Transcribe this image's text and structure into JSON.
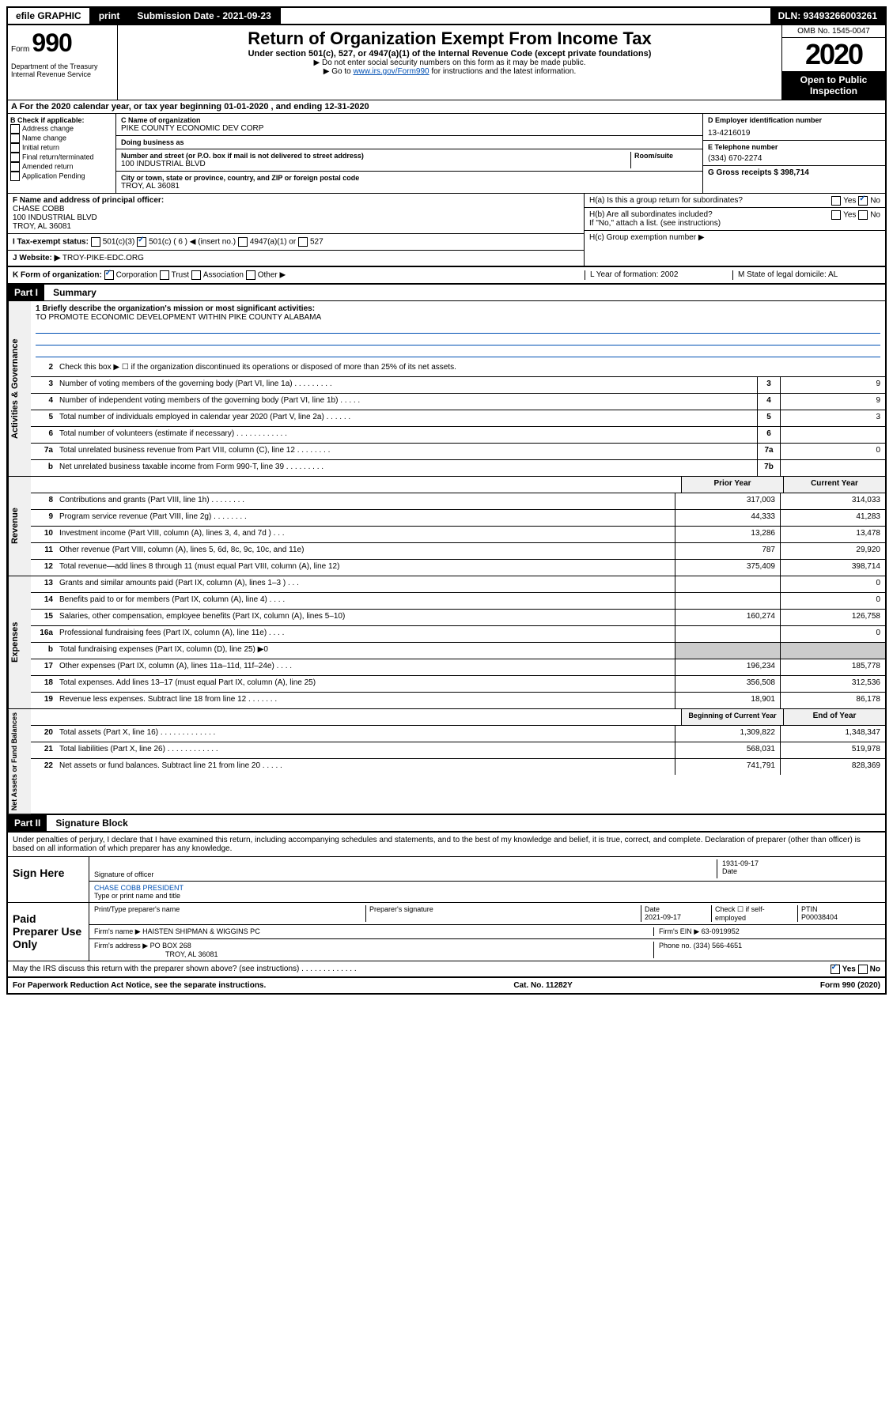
{
  "topbar": {
    "efile": "efile GRAPHIC",
    "print": "print",
    "subdate_label": "Submission Date - 2021-09-23",
    "dln": "DLN: 93493266003261"
  },
  "header": {
    "form_label": "Form",
    "form_num": "990",
    "dept": "Department of the Treasury\nInternal Revenue Service",
    "title": "Return of Organization Exempt From Income Tax",
    "subtitle": "Under section 501(c), 527, or 4947(a)(1) of the Internal Revenue Code (except private foundations)",
    "instr1": "▶ Do not enter social security numbers on this form as it may be made public.",
    "instr2_pre": "▶ Go to ",
    "instr2_link": "www.irs.gov/Form990",
    "instr2_post": " for instructions and the latest information.",
    "omb": "OMB No. 1545-0047",
    "year": "2020",
    "open": "Open to Public Inspection"
  },
  "row_a": "A For the 2020 calendar year, or tax year beginning 01-01-2020    , and ending 12-31-2020",
  "col_b": {
    "label": "B Check if applicable:",
    "items": [
      "Address change",
      "Name change",
      "Initial return",
      "Final return/terminated",
      "Amended return",
      "Application Pending"
    ]
  },
  "org": {
    "name_label": "C Name of organization",
    "name": "PIKE COUNTY ECONOMIC DEV CORP",
    "dba_label": "Doing business as",
    "addr_label": "Number and street (or P.O. box if mail is not delivered to street address)",
    "room_label": "Room/suite",
    "addr": "100 INDUSTRIAL BLVD",
    "city_label": "City or town, state or province, country, and ZIP or foreign postal code",
    "city": "TROY, AL  36081"
  },
  "right": {
    "d_label": "D Employer identification number",
    "d_val": "13-4216019",
    "e_label": "E Telephone number",
    "e_val": "(334) 670-2274",
    "g_label": "G Gross receipts $ 398,714"
  },
  "officer": {
    "label": "F  Name and address of principal officer:",
    "name": "CHASE COBB",
    "addr1": "100 INDUSTRIAL BLVD",
    "addr2": "TROY, AL  36081"
  },
  "h": {
    "a": "H(a)  Is this a group return for subordinates?",
    "b": "H(b)  Are all subordinates included?",
    "b_note": "If \"No,\" attach a list. (see instructions)",
    "c": "H(c)  Group exemption number ▶",
    "yes": "Yes",
    "no": "No"
  },
  "tax_status": {
    "label": "I  Tax-exempt status:",
    "opts": [
      "501(c)(3)",
      "501(c) ( 6 ) ◀ (insert no.)",
      "4947(a)(1) or",
      "527"
    ]
  },
  "website": {
    "label": "J  Website: ▶",
    "val": "TROY-PIKE-EDC.ORG"
  },
  "korg": {
    "label": "K Form of organization:",
    "opts": [
      "Corporation",
      "Trust",
      "Association",
      "Other ▶"
    ],
    "l": "L Year of formation: 2002",
    "m": "M State of legal domicile: AL"
  },
  "part1": {
    "header": "Part I",
    "title": "Summary"
  },
  "governance": {
    "tab": "Activities & Governance",
    "q1_label": "1  Briefly describe the organization's mission or most significant activities:",
    "q1_val": "TO PROMOTE ECONOMIC DEVELOPMENT WITHIN PIKE COUNTY ALABAMA",
    "lines": [
      {
        "n": "2",
        "t": "Check this box ▶ ☐  if the organization discontinued its operations or disposed of more than 25% of its net assets."
      },
      {
        "n": "3",
        "t": "Number of voting members of the governing body (Part VI, line 1a)  .    .    .    .    .    .    .    .    .",
        "box": "3",
        "v": "9"
      },
      {
        "n": "4",
        "t": "Number of independent voting members of the governing body (Part VI, line 1b)  .    .    .    .    .",
        "box": "4",
        "v": "9"
      },
      {
        "n": "5",
        "t": "Total number of individuals employed in calendar year 2020 (Part V, line 2a)  .    .    .    .    .    .",
        "box": "5",
        "v": "3"
      },
      {
        "n": "6",
        "t": "Total number of volunteers (estimate if necessary)  .    .    .    .    .    .    .    .    .    .    .    .",
        "box": "6",
        "v": ""
      },
      {
        "n": "7a",
        "t": "Total unrelated business revenue from Part VIII, column (C), line 12  .    .    .    .    .    .    .    .",
        "box": "7a",
        "v": "0"
      },
      {
        "n": "b",
        "t": "Net unrelated business taxable income from Form 990-T, line 39  .    .    .    .    .    .    .    .    .",
        "box": "7b",
        "v": ""
      }
    ]
  },
  "revenue": {
    "tab": "Revenue",
    "h1": "Prior Year",
    "h2": "Current Year",
    "lines": [
      {
        "n": "8",
        "t": "Contributions and grants (Part VIII, line 1h)  .    .    .    .    .    .    .    .",
        "p": "317,003",
        "c": "314,033"
      },
      {
        "n": "9",
        "t": "Program service revenue (Part VIII, line 2g)  .    .    .    .    .    .    .    .",
        "p": "44,333",
        "c": "41,283"
      },
      {
        "n": "10",
        "t": "Investment income (Part VIII, column (A), lines 3, 4, and 7d )  .    .    .",
        "p": "13,286",
        "c": "13,478"
      },
      {
        "n": "11",
        "t": "Other revenue (Part VIII, column (A), lines 5, 6d, 8c, 9c, 10c, and 11e)",
        "p": "787",
        "c": "29,920"
      },
      {
        "n": "12",
        "t": "Total revenue—add lines 8 through 11 (must equal Part VIII, column (A), line 12)",
        "p": "375,409",
        "c": "398,714"
      }
    ]
  },
  "expenses": {
    "tab": "Expenses",
    "lines": [
      {
        "n": "13",
        "t": "Grants and similar amounts paid (Part IX, column (A), lines 1–3 )  .    .    .",
        "p": "",
        "c": "0"
      },
      {
        "n": "14",
        "t": "Benefits paid to or for members (Part IX, column (A), line 4)  .    .    .    .",
        "p": "",
        "c": "0"
      },
      {
        "n": "15",
        "t": "Salaries, other compensation, employee benefits (Part IX, column (A), lines 5–10)",
        "p": "160,274",
        "c": "126,758"
      },
      {
        "n": "16a",
        "t": "Professional fundraising fees (Part IX, column (A), line 11e)  .    .    .    .",
        "p": "",
        "c": "0"
      },
      {
        "n": "b",
        "t": "Total fundraising expenses (Part IX, column (D), line 25) ▶0",
        "p": null,
        "c": null
      },
      {
        "n": "17",
        "t": "Other expenses (Part IX, column (A), lines 11a–11d, 11f–24e)  .    .    .    .",
        "p": "196,234",
        "c": "185,778"
      },
      {
        "n": "18",
        "t": "Total expenses. Add lines 13–17 (must equal Part IX, column (A), line 25)",
        "p": "356,508",
        "c": "312,536"
      },
      {
        "n": "19",
        "t": "Revenue less expenses. Subtract line 18 from line 12  .    .    .    .    .    .    .",
        "p": "18,901",
        "c": "86,178"
      }
    ]
  },
  "netassets": {
    "tab": "Net Assets or Fund Balances",
    "h1": "Beginning of Current Year",
    "h2": "End of Year",
    "lines": [
      {
        "n": "20",
        "t": "Total assets (Part X, line 16)  .    .    .    .    .    .    .    .    .    .    .    .    .",
        "p": "1,309,822",
        "c": "1,348,347"
      },
      {
        "n": "21",
        "t": "Total liabilities (Part X, line 26)  .    .    .    .    .    .    .    .    .    .    .    .",
        "p": "568,031",
        "c": "519,978"
      },
      {
        "n": "22",
        "t": "Net assets or fund balances. Subtract line 21 from line 20  .    .    .    .    .",
        "p": "741,791",
        "c": "828,369"
      }
    ]
  },
  "part2": {
    "header": "Part II",
    "title": "Signature Block"
  },
  "sig": {
    "perjury": "Under penalties of perjury, I declare that I have examined this return, including accompanying schedules and statements, and to the best of my knowledge and belief, it is true, correct, and complete. Declaration of preparer (other than officer) is based on all information of which preparer has any knowledge.",
    "sign_here": "Sign Here",
    "sig_officer": "Signature of officer",
    "sig_date": "1931-09-17",
    "date_label": "Date",
    "name_title": "CHASE COBB  PRESIDENT",
    "name_label": "Type or print name and title",
    "paid": "Paid Preparer Use Only",
    "prep_name_label": "Print/Type preparer's name",
    "prep_sig_label": "Preparer's signature",
    "prep_date_label": "Date",
    "prep_date": "2021-09-17",
    "check_label": "Check ☐ if self-employed",
    "ptin_label": "PTIN",
    "ptin": "P00038404",
    "firm_name_label": "Firm's name    ▶",
    "firm_name": "HAISTEN SHIPMAN & WIGGINS PC",
    "firm_ein_label": "Firm's EIN ▶",
    "firm_ein": "63-0919952",
    "firm_addr_label": "Firm's address ▶",
    "firm_addr1": "PO BOX 268",
    "firm_addr2": "TROY, AL  36081",
    "phone_label": "Phone no.",
    "phone": "(334) 566-4651",
    "discuss": "May the IRS discuss this return with the preparer shown above? (see instructions)   .    .    .    .    .    .    .    .    .    .    .    .    ."
  },
  "footer": {
    "pra": "For Paperwork Reduction Act Notice, see the separate instructions.",
    "cat": "Cat. No. 11282Y",
    "form": "Form 990 (2020)"
  }
}
